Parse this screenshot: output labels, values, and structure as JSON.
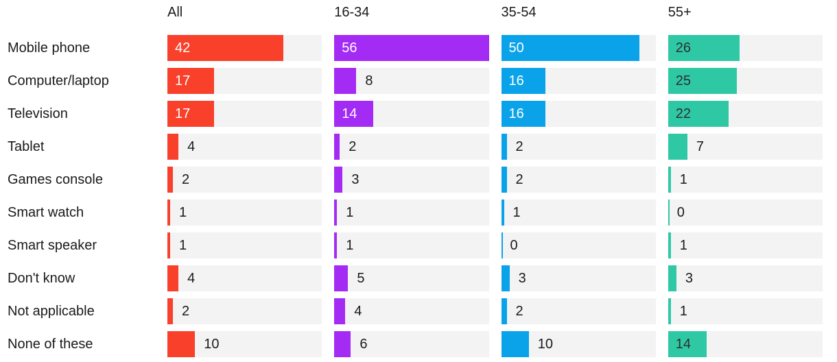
{
  "chart_data": {
    "type": "bar",
    "orientation": "horizontal",
    "title": "",
    "max_value": 56,
    "track_color": "#f3f3f4",
    "outside_text_color": "#1a1a1a",
    "label_inside_threshold": 14,
    "columns": [
      {
        "label": "All",
        "color": "#f8402b",
        "inside_text_color": "#ffffff"
      },
      {
        "label": "16-34",
        "color": "#a32bf4",
        "inside_text_color": "#ffffff"
      },
      {
        "label": "35-54",
        "color": "#0aa3e9",
        "inside_text_color": "#ffffff"
      },
      {
        "label": "55+",
        "color": "#2fc8a5",
        "inside_text_color": "#2e2e2e"
      }
    ],
    "categories": [
      "Mobile phone",
      "Computer/laptop",
      "Television",
      "Tablet",
      "Games console",
      "Smart watch",
      "Smart speaker",
      "Don't know",
      "Not applicable",
      "None of these"
    ],
    "series": [
      {
        "name": "All",
        "values": [
          42,
          17,
          17,
          4,
          2,
          1,
          1,
          4,
          2,
          10
        ]
      },
      {
        "name": "16-34",
        "values": [
          56,
          8,
          14,
          2,
          3,
          1,
          1,
          5,
          4,
          6
        ]
      },
      {
        "name": "35-54",
        "values": [
          50,
          16,
          16,
          2,
          2,
          1,
          0,
          3,
          2,
          10
        ]
      },
      {
        "name": "55+",
        "values": [
          26,
          25,
          22,
          7,
          1,
          0,
          1,
          3,
          1,
          14
        ]
      }
    ]
  }
}
